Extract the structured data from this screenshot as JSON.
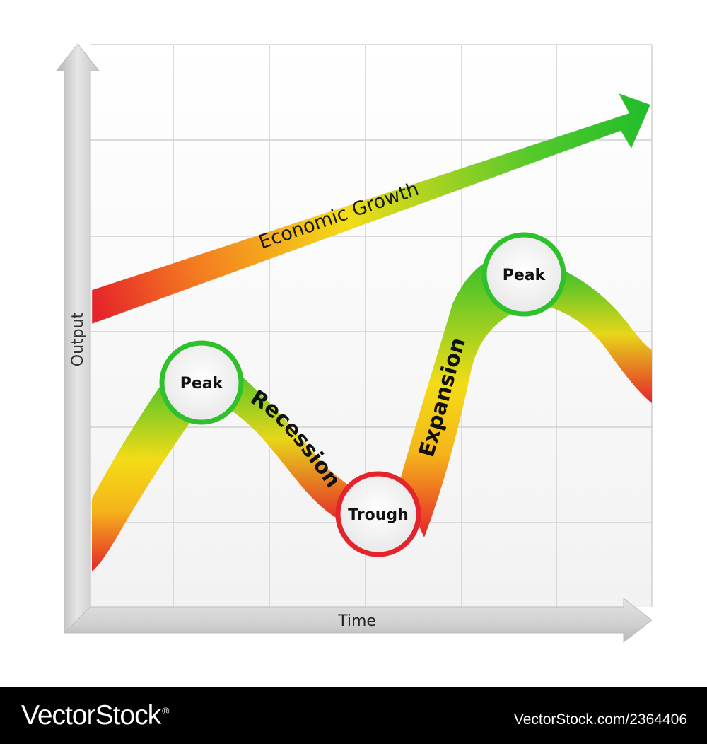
{
  "colors": {
    "red": "#e5232a",
    "orange": "#f47a20",
    "yellow": "#f3dc17",
    "green": "#3cc22d",
    "axis_gray": "#c9c9c9",
    "grid": "#d0d0d0",
    "footer_bg": "#000000",
    "footer_text": "#ffffff"
  },
  "axes": {
    "y_label": "Output",
    "x_label": "Time"
  },
  "growth_arrow": {
    "label": "Economic Growth"
  },
  "cycle": {
    "nodes": [
      {
        "label": "Peak"
      },
      {
        "label": "Trough"
      },
      {
        "label": "Peak"
      }
    ],
    "phases": [
      {
        "label": "Recession"
      },
      {
        "label": "Expansion"
      }
    ]
  },
  "footer": {
    "brand": "VectorStock",
    "registered": "®",
    "image_id": "VectorStock.com/2364406"
  }
}
